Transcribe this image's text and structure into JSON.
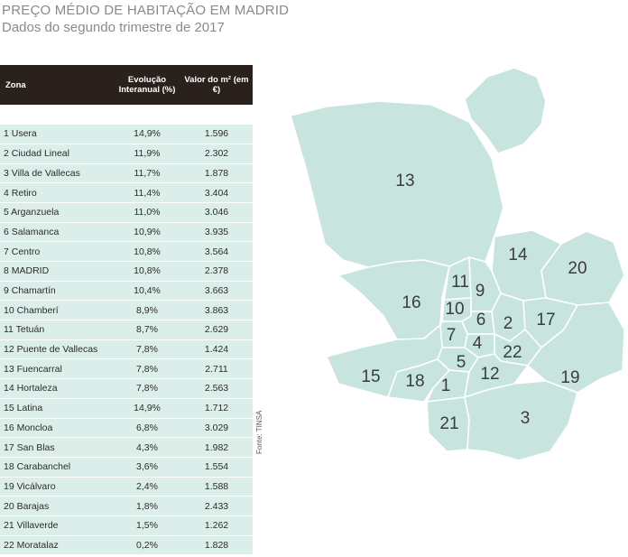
{
  "header": {
    "title": "PREÇO MÉDIO DE HABITAÇÃO EM MADRID",
    "subtitle": "Dados do segundo trimestre de 2017"
  },
  "source": "Fonte: TINSA",
  "chart_data": {
    "type": "table",
    "columns": [
      "Zona",
      "Evolução Interanual (%)",
      "Valor do m² (em €)"
    ],
    "rows": [
      {
        "zona": "1  Usera",
        "evolucao": "14,9%",
        "valor": "1.596"
      },
      {
        "zona": "2 Ciudad Lineal",
        "evolucao": "11,9%",
        "valor": "2.302"
      },
      {
        "zona": "3 Villa de Vallecas",
        "evolucao": "11,7%",
        "valor": "1.878"
      },
      {
        "zona": "4 Retiro",
        "evolucao": "11,4%",
        "valor": "3.404"
      },
      {
        "zona": "5 Arganzuela",
        "evolucao": "11,0%",
        "valor": "3.046"
      },
      {
        "zona": "6 Salamanca",
        "evolucao": "10,9%",
        "valor": "3.935"
      },
      {
        "zona": "7 Centro",
        "evolucao": "10,8%",
        "valor": "3.564"
      },
      {
        "zona": " 8 MADRID",
        "evolucao": "10,8%",
        "valor": "2.378"
      },
      {
        "zona": "9 Chamartín",
        "evolucao": "10,4%",
        "valor": "3.663"
      },
      {
        "zona": "10 Chamberí",
        "evolucao": "8,9%",
        "valor": "3.863"
      },
      {
        "zona": "11 Tetuán",
        "evolucao": "8,7%",
        "valor": "2.629"
      },
      {
        "zona": "12 Puente de Vallecas",
        "evolucao": "7,8%",
        "valor": "1.424"
      },
      {
        "zona": "13 Fuencarral",
        "evolucao": "7,8%",
        "valor": "2.711"
      },
      {
        "zona": "14 Hortaleza",
        "evolucao": "7,8%",
        "valor": "2.563"
      },
      {
        "zona": "15 Latina",
        "evolucao": "14,9%",
        "valor": "1.712"
      },
      {
        "zona": "16 Moncloa",
        "evolucao": "6,8%",
        "valor": "3.029"
      },
      {
        "zona": "17 San Blas",
        "evolucao": "4,3%",
        "valor": "1.982"
      },
      {
        "zona": "18 Carabanchel",
        "evolucao": "3,6%",
        "valor": "1.554"
      },
      {
        "zona": "19 Vicálvaro",
        "evolucao": "2,4%",
        "valor": "1.588"
      },
      {
        "zona": "20 Barajas",
        "evolucao": "1,8%",
        "valor": "2.433"
      },
      {
        "zona": "21 Villaverde",
        "evolucao": "1,5%",
        "valor": "1.262"
      },
      {
        "zona": "22 Moratalaz",
        "evolucao": "0,2%",
        "valor": "1.828"
      }
    ],
    "map_labels": [
      "13",
      "14",
      "20",
      "16",
      "11",
      "9",
      "10",
      "6",
      "2",
      "17",
      "7",
      "4",
      "22",
      "5",
      "15",
      "18",
      "1",
      "12",
      "19",
      "21",
      "3"
    ]
  },
  "colors": {
    "header_bg": "#2a211d",
    "row_bg": "#dbeee9",
    "map_fill": "#c7e4de",
    "title": "#8a8a8a"
  }
}
